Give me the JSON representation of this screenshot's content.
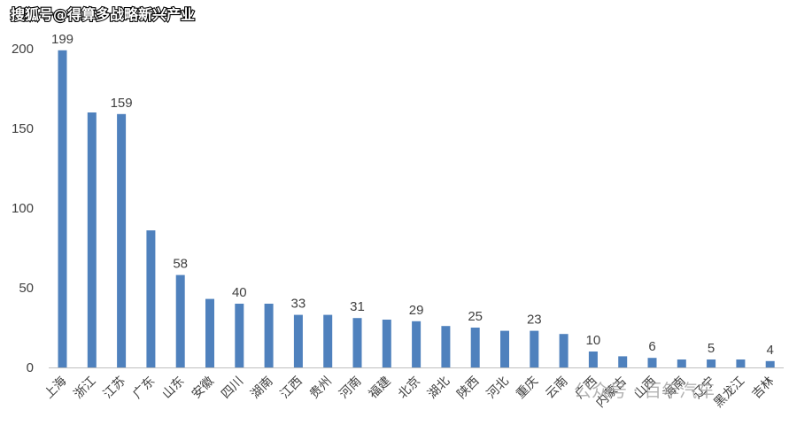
{
  "watermark_top": "搜狐号@得算多战略新兴产业",
  "watermark_bottom": "公众号 · 百年汽车",
  "colors": {
    "bar": "#4f81bd",
    "axis": "#bfbfbf",
    "text": "#404040"
  },
  "chart_data": {
    "type": "bar",
    "title": "",
    "xlabel": "",
    "ylabel": "",
    "ylim": [
      0,
      200
    ],
    "yticks": [
      0,
      50,
      100,
      150,
      200
    ],
    "grid": false,
    "categories": [
      "上海",
      "浙江",
      "江苏",
      "广东",
      "山东",
      "安徽",
      "四川",
      "湖南",
      "江西",
      "贵州",
      "河南",
      "福建",
      "北京",
      "湖北",
      "陕西",
      "河北",
      "重庆",
      "云南",
      "广西",
      "内蒙古",
      "山西",
      "海南",
      "辽宁",
      "黑龙江",
      "吉林"
    ],
    "values": [
      199,
      160,
      159,
      86,
      58,
      43,
      40,
      40,
      33,
      33,
      31,
      30,
      29,
      26,
      25,
      23,
      23,
      21,
      10,
      7,
      6,
      5,
      5,
      5,
      4
    ],
    "data_labels": [
      {
        "index": 0,
        "text": "199"
      },
      {
        "index": 2,
        "text": "159"
      },
      {
        "index": 4,
        "text": "58"
      },
      {
        "index": 6,
        "text": "40"
      },
      {
        "index": 8,
        "text": "33"
      },
      {
        "index": 10,
        "text": "31"
      },
      {
        "index": 12,
        "text": "29"
      },
      {
        "index": 14,
        "text": "25"
      },
      {
        "index": 16,
        "text": "23"
      },
      {
        "index": 18,
        "text": "10"
      },
      {
        "index": 20,
        "text": "6"
      },
      {
        "index": 22,
        "text": "5"
      },
      {
        "index": 24,
        "text": "4"
      }
    ]
  }
}
